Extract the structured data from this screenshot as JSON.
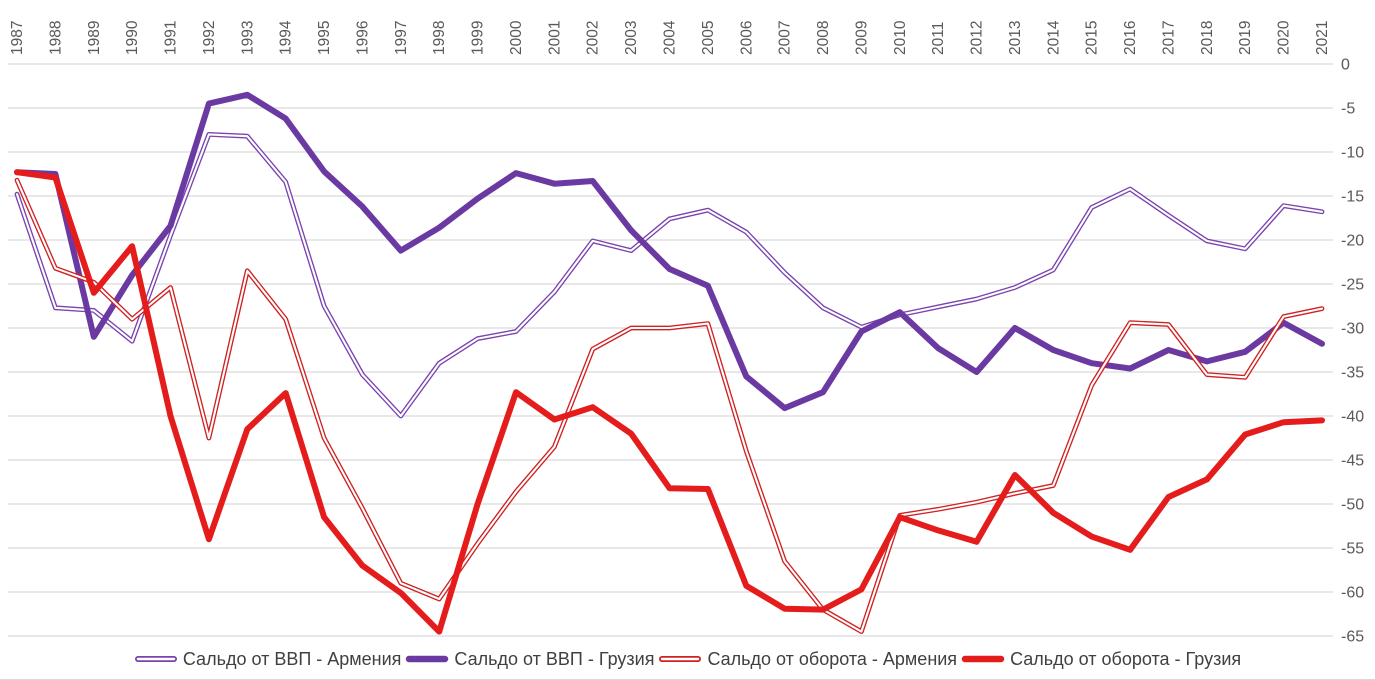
{
  "chart_data": {
    "type": "line",
    "title": "",
    "xlabel": "",
    "ylabel": "",
    "x": [
      1987,
      1988,
      1989,
      1990,
      1991,
      1992,
      1993,
      1994,
      1995,
      1996,
      1997,
      1998,
      1999,
      2000,
      2001,
      2002,
      2003,
      2004,
      2005,
      2006,
      2007,
      2008,
      2009,
      2010,
      2011,
      2012,
      2013,
      2014,
      2015,
      2016,
      2017,
      2018,
      2019,
      2020,
      2021
    ],
    "series": [
      {
        "name": "Сальдо от ВВП - Армения",
        "color": "#7a44ae",
        "style": "thin-double",
        "values": [
          -14.8,
          -27.7,
          -28.0,
          -31.5,
          -19.5,
          -8.0,
          -8.2,
          -13.4,
          -27.5,
          -35.3,
          -40.0,
          -34.0,
          -31.2,
          -30.4,
          -25.9,
          -20.1,
          -21.2,
          -17.6,
          -16.6,
          -19.1,
          -23.7,
          -27.7,
          -29.9,
          -28.5,
          -27.6,
          -26.7,
          -25.4,
          -23.4,
          -16.3,
          -14.2,
          -17.2,
          -20.1,
          -21.0,
          -16.1,
          -16.8
        ]
      },
      {
        "name": "Сальдо от ВВП - Грузия",
        "color": "#6a3aa2",
        "style": "thick",
        "values": [
          -12.3,
          -12.5,
          -31.0,
          -24.0,
          -18.4,
          -4.5,
          -3.5,
          -6.2,
          -12.2,
          -16.2,
          -21.2,
          -18.6,
          -15.3,
          -12.4,
          -13.6,
          -13.3,
          -18.9,
          -23.3,
          -25.2,
          -35.5,
          -39.1,
          -37.3,
          -30.4,
          -28.2,
          -32.3,
          -35.0,
          -30.0,
          -32.5,
          -34.0,
          -34.6,
          -32.5,
          -33.8,
          -32.7,
          -29.4,
          -31.8
        ]
      },
      {
        "name": "Сальдо от оборота - Армения",
        "color": "#cf2222",
        "style": "thin-double",
        "values": [
          -13.2,
          -23.2,
          -24.8,
          -29.0,
          -25.4,
          -42.5,
          -23.5,
          -29.0,
          -42.5,
          -50.5,
          -59.0,
          -60.8,
          -54.5,
          -48.6,
          -43.5,
          -32.4,
          -30.0,
          -30.0,
          -29.5,
          -44.0,
          -56.5,
          -62.0,
          -64.5,
          -51.3,
          -50.6,
          -49.8,
          -48.8,
          -47.9,
          -36.5,
          -29.4,
          -29.6,
          -35.3,
          -35.6,
          -28.7,
          -27.8
        ]
      },
      {
        "name": "Сальдо от оборота - Грузия",
        "color": "#e51c1c",
        "style": "thick",
        "values": [
          -12.3,
          -12.9,
          -26.0,
          -20.7,
          -40.0,
          -54.0,
          -41.5,
          -37.4,
          -51.5,
          -57.0,
          -60.1,
          -64.5,
          -50.0,
          -37.3,
          -40.4,
          -39.0,
          -42.0,
          -48.2,
          -48.3,
          -59.3,
          -61.9,
          -62.0,
          -59.7,
          -51.5,
          -53.0,
          -54.3,
          -46.7,
          -51.0,
          -53.7,
          -55.2,
          -49.2,
          -47.2,
          -42.1,
          -40.7,
          -40.5
        ]
      }
    ],
    "ylim": [
      -65,
      0
    ],
    "yticks": [
      0,
      -5,
      -10,
      -15,
      -20,
      -25,
      -30,
      -35,
      -40,
      -45,
      -50,
      -55,
      -60,
      -65
    ],
    "ytick_labels": [
      "0",
      "-5",
      "-10",
      "-15",
      "-20",
      "-25",
      "-30",
      "-35",
      "-40",
      "-45",
      "-50",
      "-55",
      "-60",
      "-65"
    ],
    "xtick_labels": [
      "1987",
      "1988",
      "1989",
      "1990",
      "1991",
      "1992",
      "1993",
      "1994",
      "1995",
      "1996",
      "1997",
      "1998",
      "1999",
      "2000",
      "2001",
      "2002",
      "2003",
      "2004",
      "2005",
      "2006",
      "2007",
      "2008",
      "2009",
      "2010",
      "2011",
      "2012",
      "2013",
      "2014",
      "2015",
      "2016",
      "2017",
      "2018",
      "2019",
      "2020",
      "2021"
    ],
    "x_axis_position": "top",
    "y_axis_position": "right",
    "grid": "horizontal",
    "grid_color": "#d9d9d9",
    "axis_text_color": "#595959",
    "legend_position": "bottom"
  }
}
